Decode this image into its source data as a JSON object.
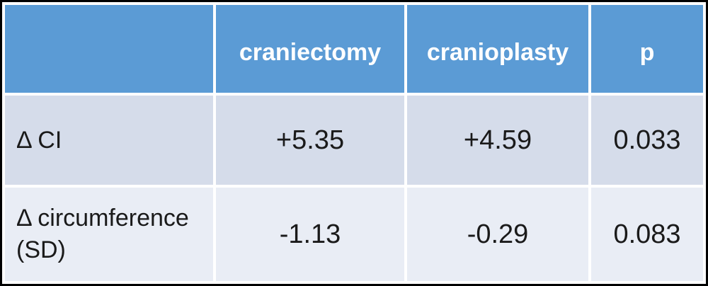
{
  "colors": {
    "header_bg": "#5B9BD5",
    "header_text": "#FFFFFF",
    "row_band_dark": "#D5DCEA",
    "row_band_light": "#E9EDF5",
    "body_text": "#1A1A1A",
    "cell_gap": "#FFFFFF",
    "outer_frame": "#000000"
  },
  "chart_data": {
    "type": "table",
    "title": "",
    "columns": [
      "",
      "craniectomy",
      "cranioplasty",
      "p"
    ],
    "rows": [
      {
        "label": "Δ CI",
        "values": [
          "+5.35",
          "+4.59",
          "0.033"
        ]
      },
      {
        "label": "Δ circumference (SD)",
        "values": [
          "-1.13",
          "-0.29",
          "0.083"
        ]
      }
    ]
  }
}
